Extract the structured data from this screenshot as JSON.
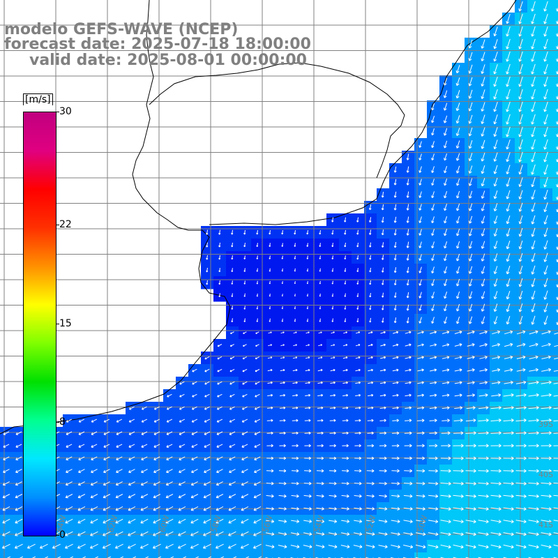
{
  "title": {
    "line1": "modelo GEFS-WAVE (NCEP)",
    "line2": "forecast date: 2025-07-18 18:00:00",
    "line3": "valid date: 2025-08-01 00:00:00"
  },
  "colorbar": {
    "units": "[m/s]",
    "min": 0,
    "max": 30,
    "ticks": [
      {
        "label": "30",
        "value": 30
      },
      {
        "label": "22",
        "value": 22
      },
      {
        "label": "15",
        "value": 15
      },
      {
        "label": "8",
        "value": 8
      },
      {
        "label": "0",
        "value": 0
      }
    ],
    "colors": [
      "#0000ff",
      "#0090ff",
      "#00e8ff",
      "#00ff90",
      "#00e000",
      "#80ff00",
      "#ffff00",
      "#ff9000",
      "#ff3000",
      "#ff0000",
      "#e00080",
      "#c00080"
    ]
  },
  "map": {
    "field": "wind speed and direction",
    "background_color": "#ffffff",
    "grid_color": "#808080",
    "coast_color": "#000000",
    "arrow_color": "#ffffff",
    "longitude_labels": [
      "64W",
      "62W",
      "60W",
      "58W",
      "56W",
      "54W",
      "52W",
      "50W"
    ],
    "latitude_labels": [
      "39S",
      "40S",
      "41S"
    ],
    "speed_classes": {
      "calm": "#0018f0",
      "light": "#0032f4",
      "moderate": "#0050f8",
      "fresh": "#0070fc",
      "strong": "#009cfc",
      "very_strong": "#00c8f8"
    }
  }
}
